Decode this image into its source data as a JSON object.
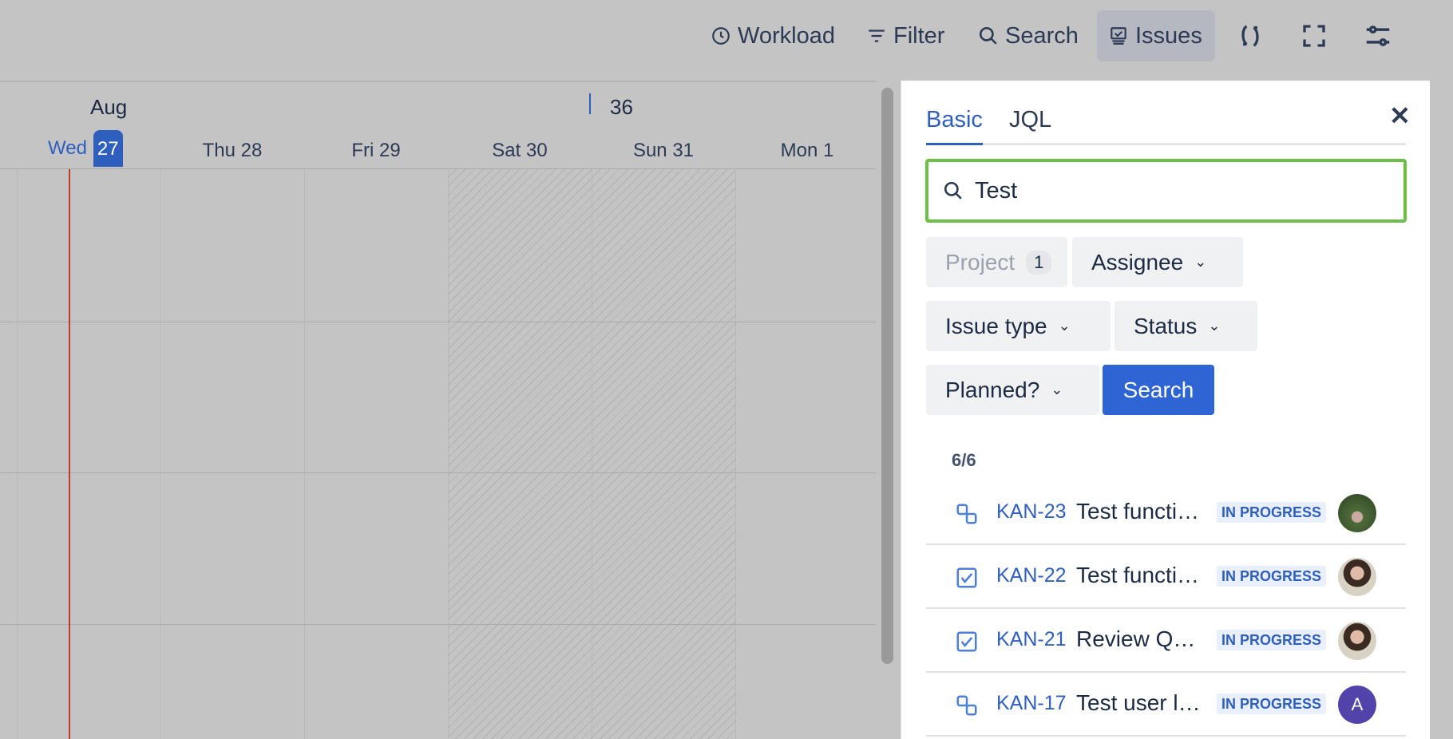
{
  "toolbar": {
    "workload": "Workload",
    "filter": "Filter",
    "search": "Search",
    "issues": "Issues"
  },
  "timeline": {
    "month": "Aug",
    "week": "36",
    "days": [
      {
        "dow": "Wed",
        "num": "27",
        "today": true
      },
      {
        "label": "Thu 28"
      },
      {
        "label": "Fri 29"
      },
      {
        "label": "Sat 30"
      },
      {
        "label": "Sun 31"
      },
      {
        "label": "Mon 1"
      }
    ]
  },
  "panel": {
    "tabs": [
      {
        "label": "Basic",
        "active": true
      },
      {
        "label": "JQL"
      }
    ],
    "search_value": "Test",
    "filters": {
      "project": "Project",
      "project_count": "1",
      "assignee": "Assignee",
      "issue_type": "Issue type",
      "status": "Status",
      "planned": "Planned?"
    },
    "search_button": "Search",
    "count": "6/6",
    "issues": [
      {
        "key": "KAN-23",
        "title": "Test functi…",
        "status": "IN PROGRESS",
        "type": "subtask",
        "avatar": "photo"
      },
      {
        "key": "KAN-22",
        "title": "Test functi…",
        "status": "IN PROGRESS",
        "type": "task",
        "avatar": "photo"
      },
      {
        "key": "KAN-21",
        "title": "Review Q…",
        "status": "IN PROGRESS",
        "type": "task",
        "avatar": "photo"
      },
      {
        "key": "KAN-17",
        "title": "Test user l…",
        "status": "IN PROGRESS",
        "type": "subtask",
        "avatar": "A"
      }
    ]
  },
  "colors": {
    "accent": "#2e5fbf",
    "today_line": "#c0392b",
    "search_focus": "#6cc04a",
    "avatar_a": "#5243aa"
  }
}
